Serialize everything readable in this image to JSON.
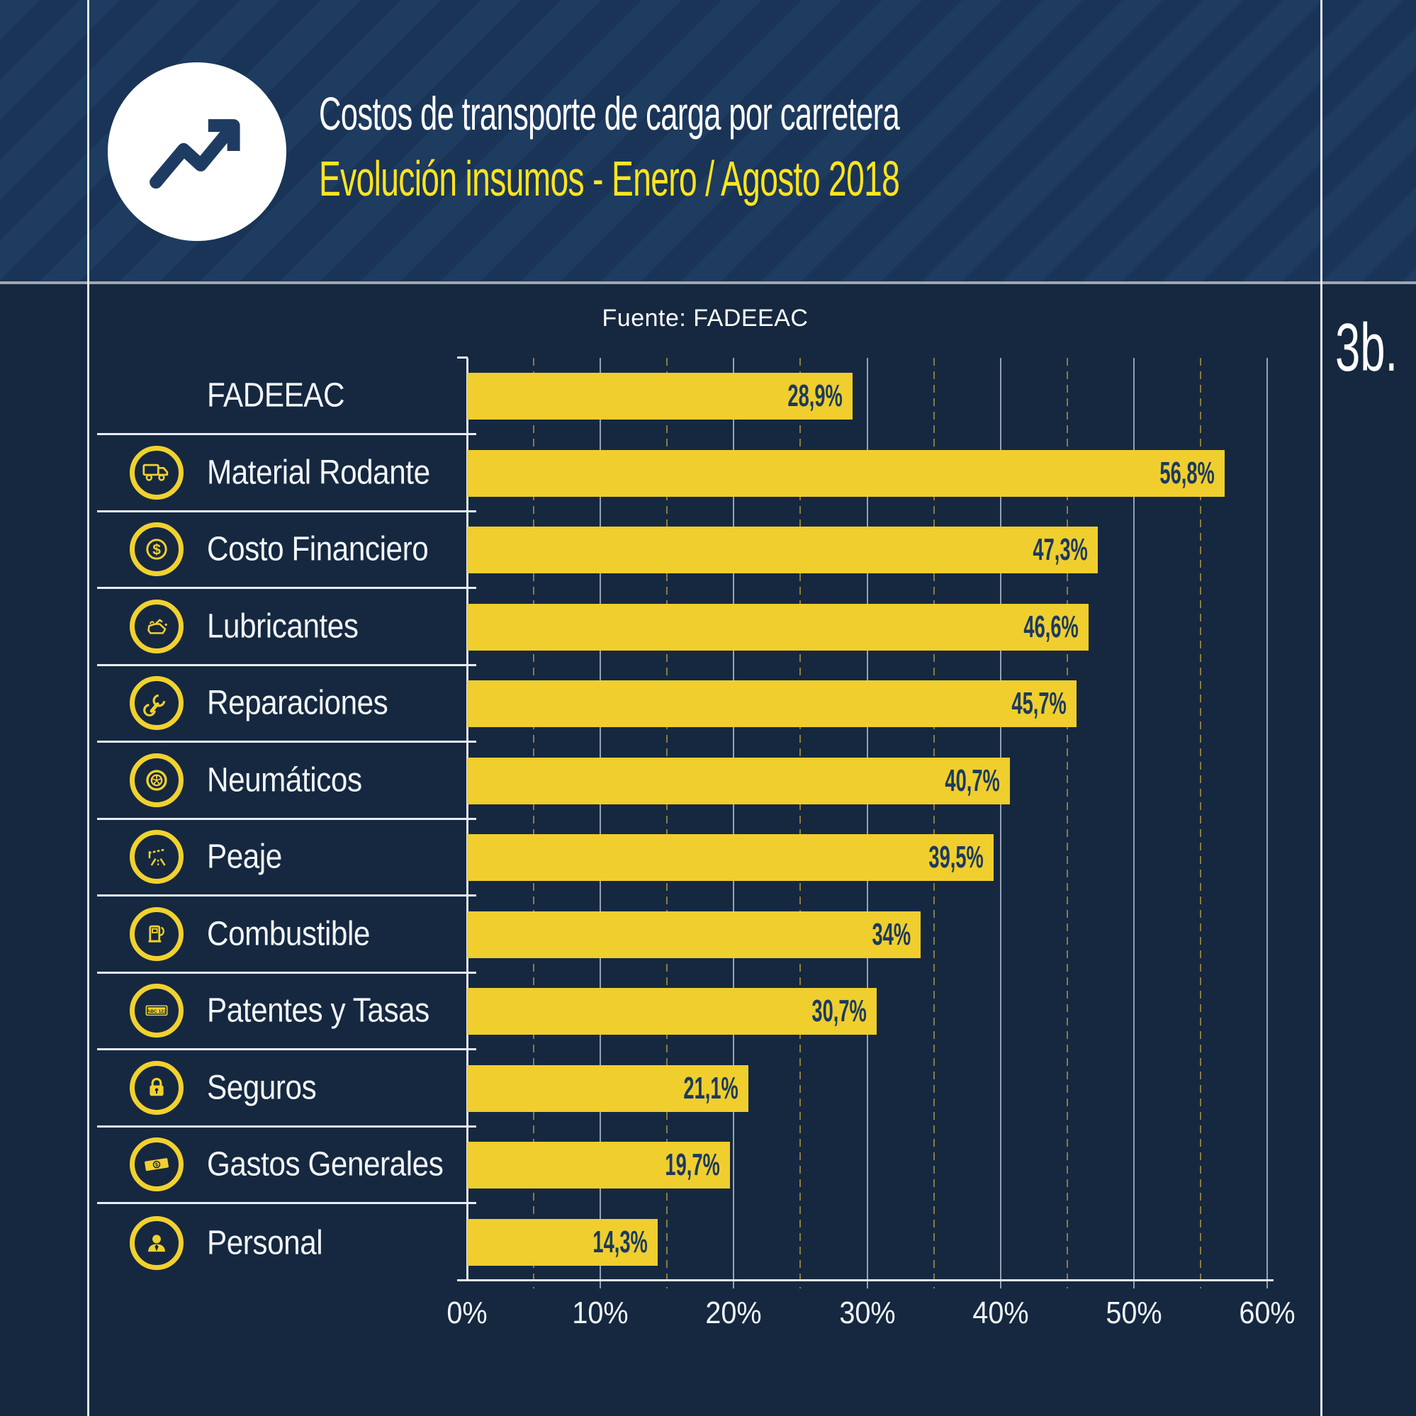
{
  "figure_label": "3b.",
  "header": {
    "title": "Costos de transporte de carga por carretera",
    "subtitle": "Evolución insumos - Enero / Agosto 2018",
    "badge_icon": "trend-up-icon"
  },
  "source": "Fuente: FADEEAC",
  "colors": {
    "background_navy": "#152840",
    "header_navy": "#1E3B60",
    "header_stripe": "#193456",
    "bar_yellow": "#F0CE2E",
    "icon_yellow": "#F2D12E",
    "subtitle_yellow": "#FFE51E",
    "value_navy": "#1B3A5F",
    "text_white": "#FFFFFF",
    "grid_major": "#97A0B4",
    "grid_minor_olive": "#8A7C42",
    "axis_line": "#E8EBEF"
  },
  "chart_data": {
    "type": "bar",
    "orientation": "horizontal",
    "title": "Costos de transporte de carga por carretera",
    "subtitle": "Evolución insumos - Enero / Agosto 2018",
    "source": "Fuente: FADEEAC",
    "xlabel": "",
    "ylabel": "",
    "xlim": [
      0,
      60
    ],
    "x_tick_labels": [
      "0%",
      "10%",
      "20%",
      "30%",
      "40%",
      "50%",
      "60%"
    ],
    "x_tick_values": [
      0,
      10,
      20,
      30,
      40,
      50,
      60
    ],
    "x_minor_tick_values": [
      5,
      15,
      25,
      35,
      45,
      55
    ],
    "grid": true,
    "legend_position": "none",
    "categories": [
      "FADEEAC",
      "Material Rodante",
      "Costo Financiero",
      "Lubricantes",
      "Reparaciones",
      "Neumáticos",
      "Peaje",
      "Combustible",
      "Patentes y Tasas",
      "Seguros",
      "Gastos Generales",
      "Personal"
    ],
    "values": [
      28.9,
      56.8,
      47.3,
      46.6,
      45.7,
      40.7,
      39.5,
      34,
      30.7,
      21.1,
      19.7,
      14.3
    ],
    "value_labels": [
      "28,9%",
      "56,8%",
      "47,3%",
      "46,6%",
      "45,7%",
      "40,7%",
      "39,5%",
      "34%",
      "30,7%",
      "21,1%",
      "19,7%",
      "14,3%"
    ],
    "icons": [
      null,
      "truck-icon",
      "dollar-circle-icon",
      "oil-can-icon",
      "wrench-icon",
      "tire-icon",
      "toll-barrier-icon",
      "fuel-pump-icon",
      "license-plate-icon",
      "padlock-icon",
      "banknote-icon",
      "person-icon"
    ],
    "license_plate_text": "ABC 123",
    "currency_symbol": "$"
  }
}
